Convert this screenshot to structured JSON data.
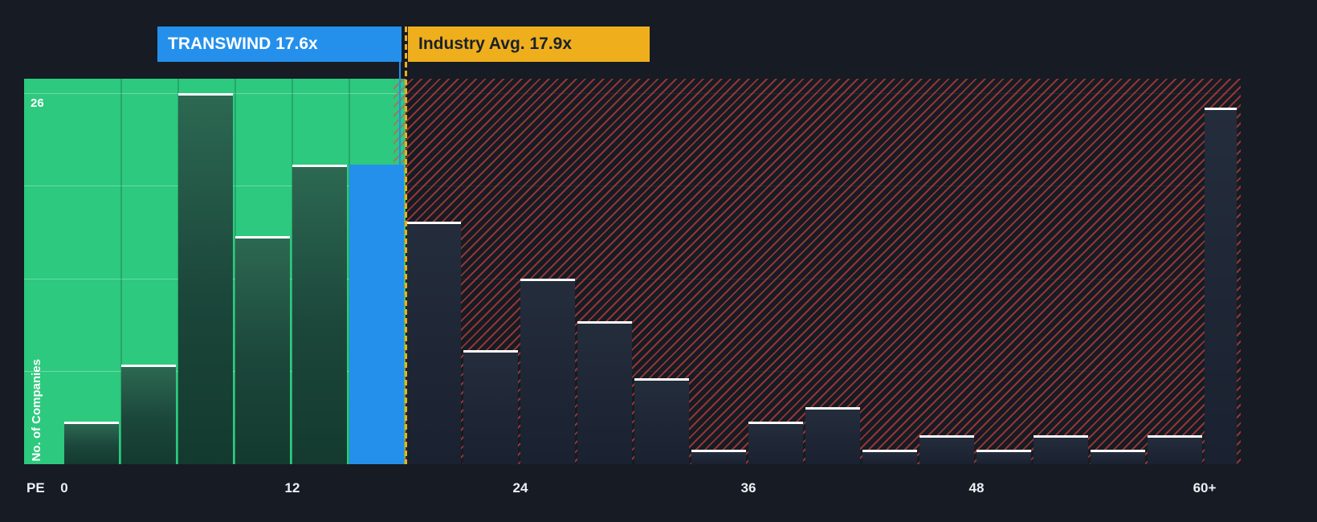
{
  "colors": {
    "background": "#161B24",
    "zone_green": "#2DC97E",
    "company_blue": "#2490EB",
    "industry_yellow": "#EFAF1C",
    "hatch_red": "#E8483F",
    "bar_top_stroke": "#FFFFFF"
  },
  "callouts": {
    "company_label": "TRANSWIND 17.6x",
    "industry_label": "Industry Avg. 17.9x"
  },
  "axis": {
    "corner_label": "PE",
    "y_label": "No. of Companies",
    "y_max_label": "26",
    "x_ticks": [
      "0",
      "12",
      "24",
      "36",
      "48",
      "60+"
    ]
  },
  "chart_data": {
    "type": "bar",
    "title": "Distribution of companies by PE ratio vs TRANSWIND and industry average",
    "xlabel": "PE",
    "ylabel": "No. of Companies",
    "x_bucket_size": 3,
    "x_range": [
      0,
      60
    ],
    "y_max": 26,
    "y_gridlines": [
      6.5,
      13,
      19.5,
      26
    ],
    "company": {
      "name": "TRANSWIND",
      "pe": 17.6
    },
    "industry_avg_pe": 17.9,
    "buckets": [
      {
        "x0": 0,
        "x1": 3,
        "count": 3,
        "zone": "below-company"
      },
      {
        "x0": 3,
        "x1": 6,
        "count": 7,
        "zone": "below-company"
      },
      {
        "x0": 6,
        "x1": 9,
        "count": 26,
        "zone": "below-company"
      },
      {
        "x0": 9,
        "x1": 12,
        "count": 16,
        "zone": "below-company"
      },
      {
        "x0": 12,
        "x1": 15,
        "count": 21,
        "zone": "below-company"
      },
      {
        "x0": 15,
        "x1": 18,
        "count": 21,
        "zone": "company"
      },
      {
        "x0": 18,
        "x1": 21,
        "count": 17,
        "zone": "above-industry"
      },
      {
        "x0": 21,
        "x1": 24,
        "count": 8,
        "zone": "above-industry"
      },
      {
        "x0": 24,
        "x1": 27,
        "count": 13,
        "zone": "above-industry"
      },
      {
        "x0": 27,
        "x1": 30,
        "count": 10,
        "zone": "above-industry"
      },
      {
        "x0": 30,
        "x1": 33,
        "count": 6,
        "zone": "above-industry"
      },
      {
        "x0": 33,
        "x1": 36,
        "count": 1,
        "zone": "above-industry"
      },
      {
        "x0": 36,
        "x1": 39,
        "count": 3,
        "zone": "above-industry"
      },
      {
        "x0": 39,
        "x1": 42,
        "count": 4,
        "zone": "above-industry"
      },
      {
        "x0": 42,
        "x1": 45,
        "count": 1,
        "zone": "above-industry"
      },
      {
        "x0": 45,
        "x1": 48,
        "count": 2,
        "zone": "above-industry"
      },
      {
        "x0": 48,
        "x1": 51,
        "count": 1,
        "zone": "above-industry"
      },
      {
        "x0": 51,
        "x1": 54,
        "count": 2,
        "zone": "above-industry"
      },
      {
        "x0": 54,
        "x1": 57,
        "count": 1,
        "zone": "above-industry"
      },
      {
        "x0": 57,
        "x1": 60,
        "count": 2,
        "zone": "above-industry"
      },
      {
        "x0": 60,
        "x1": null,
        "count": 25,
        "zone": "above-industry",
        "label": "60+"
      }
    ]
  }
}
